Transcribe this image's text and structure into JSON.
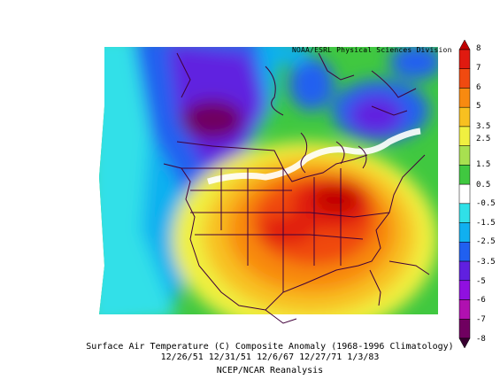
{
  "figure": {
    "credit": "NOAA/ESRL Physical Sciences Division",
    "caption_line1": "Surface Air Temperature (C) Composite Anomaly (1968-1996 Climatology)",
    "caption_line2": "12/26/51 12/31/51 12/6/67 12/27/71 1/3/83",
    "caption_line3": "NCEP/NCAR Reanalysis"
  },
  "colorbar": {
    "labels": [
      "8",
      "7",
      "6",
      "5",
      "3.5",
      "2.5",
      "1.5",
      "0.5",
      "-0.5",
      "-1.5",
      "-2.5",
      "-3.5",
      "-5",
      "-6",
      "-7",
      "-8"
    ],
    "colors": [
      "#c00000",
      "#e01a10",
      "#f04a10",
      "#f88a10",
      "#f8c020",
      "#f0f040",
      "#a8e050",
      "#40c840",
      "#ffffff",
      "#30e0e8",
      "#10b0f0",
      "#2060f0",
      "#6020e0",
      "#9010e0",
      "#b010b0",
      "#700060",
      "#380030"
    ]
  }
}
